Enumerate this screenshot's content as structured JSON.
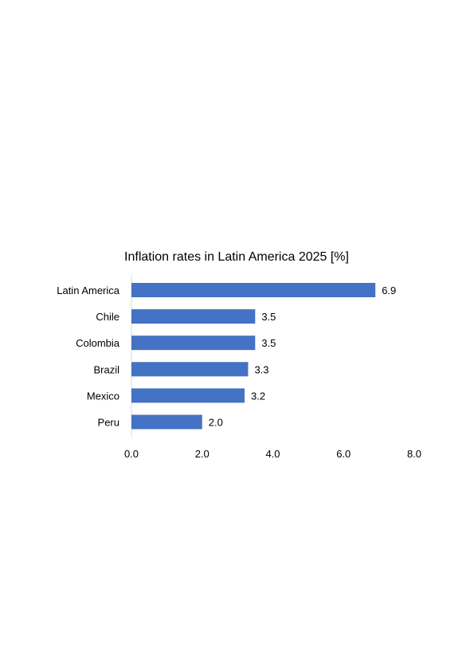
{
  "chart_data": {
    "type": "bar",
    "orientation": "horizontal",
    "title": "Inflation rates in Latin America 2025 [%]",
    "xlabel": "",
    "ylabel": "",
    "categories": [
      "Latin America",
      "Chile",
      "Colombia",
      "Brazil",
      "Mexico",
      "Peru"
    ],
    "values": [
      6.9,
      3.5,
      3.5,
      3.3,
      3.2,
      2.0
    ],
    "value_labels": [
      "6.9",
      "3.5",
      "3.5",
      "3.3",
      "3.2",
      "2.0"
    ],
    "xlim": [
      0,
      8
    ],
    "x_ticks": [
      0,
      2,
      4,
      6,
      8
    ],
    "x_tick_labels": [
      "0.0",
      "2.0",
      "4.0",
      "6.0",
      "8.0"
    ],
    "grid": false,
    "legend": "none",
    "bar_color": "#4472C4",
    "axis_color": "#D9D9D9"
  }
}
